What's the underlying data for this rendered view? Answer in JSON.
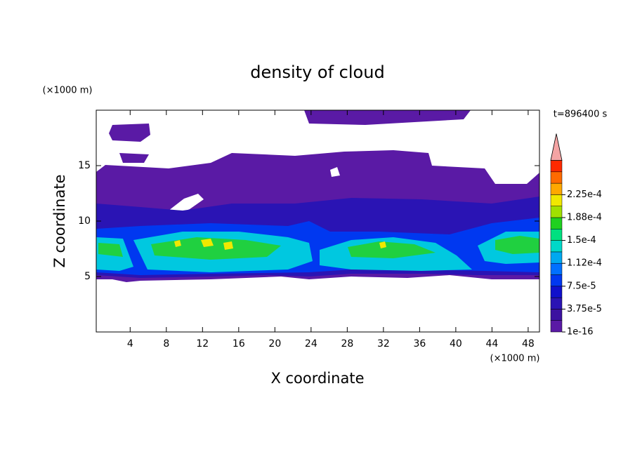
{
  "chart_data": {
    "type": "contour",
    "title": "density of cloud",
    "x_label": "X coordinate",
    "y_label": "Z coordinate",
    "x_unit": "(×1000 m)",
    "y_unit": "(×1000 m)",
    "time_label": "t=896400 s",
    "xlim": [
      0.25,
      49.25
    ],
    "ylim": [
      0,
      20
    ],
    "xticks": [
      4,
      8,
      12,
      16,
      20,
      24,
      28,
      32,
      36,
      40,
      44,
      48
    ],
    "yticks": [
      5,
      10,
      15
    ],
    "colorbar": {
      "colors": [
        "#5a1aa5",
        "#3c12a0",
        "#2a14b4",
        "#1010cc",
        "#0038f0",
        "#0070ff",
        "#00a8f0",
        "#00d8c8",
        "#00e080",
        "#20d020",
        "#a0e000",
        "#f0e800",
        "#ffa800",
        "#ff6a00",
        "#ff2a00"
      ],
      "extend_color": "#f4a4a4",
      "labels": [
        "1e-16",
        "3.75e-5",
        "7.5e-5",
        "1.12e-4",
        "1.5e-4",
        "1.88e-4",
        "2.25e-4"
      ]
    }
  }
}
